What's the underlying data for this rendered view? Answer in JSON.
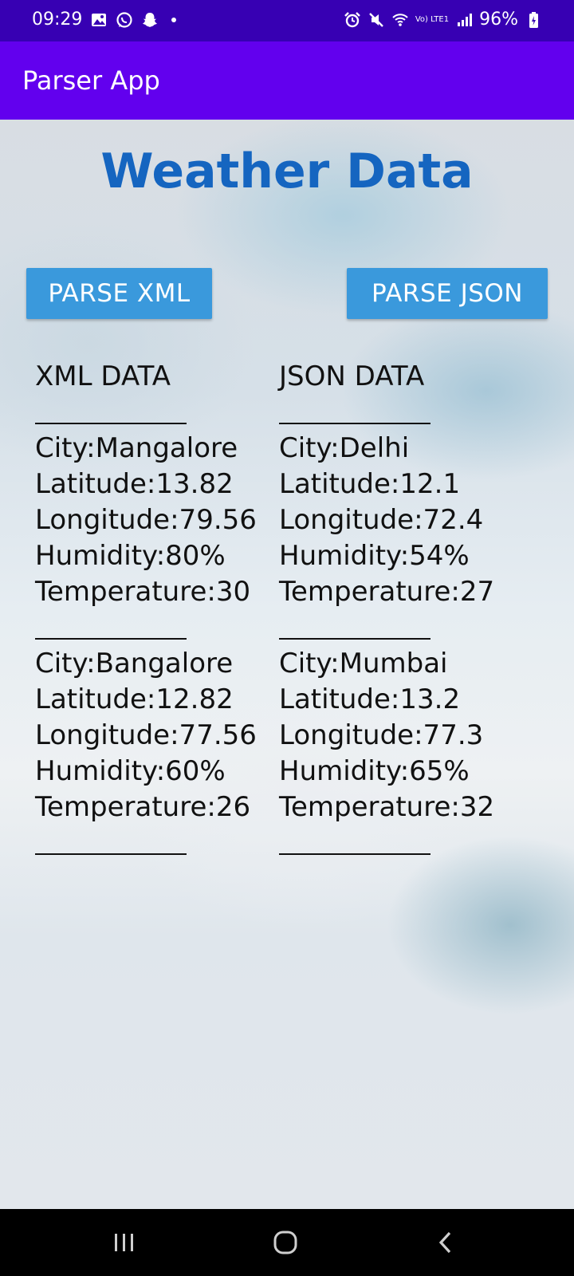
{
  "status_bar": {
    "time": "09:29",
    "network": "Vo) LTE1",
    "battery": "96%",
    "icons": [
      "gallery-icon",
      "whatsapp-icon",
      "snapchat-icon",
      "alarm-icon",
      "mute-icon",
      "wifi-icon",
      "signal-icon",
      "battery-icon"
    ]
  },
  "app_bar": {
    "title": "Parser App",
    "color": "#6200ee"
  },
  "main": {
    "title": "Weather Data",
    "title_color": "#1565c0",
    "buttons": {
      "parse_xml": "PARSE XML",
      "parse_json": "PARSE JSON"
    },
    "xml": {
      "heading": "XML DATA",
      "separator": "__________",
      "records": [
        {
          "city": "City:Mangalore",
          "latitude": "Latitude:13.82",
          "longitude": "Longitude:79.56",
          "humidity": "Humidity:80%",
          "temperature": "Temperature:30"
        },
        {
          "city": "City:Bangalore",
          "latitude": "Latitude:12.82",
          "longitude": "Longitude:77.56",
          "humidity": "Humidity:60%",
          "temperature": "Temperature:26"
        }
      ]
    },
    "json": {
      "heading": "JSON DATA",
      "separator": "__________",
      "records": [
        {
          "city": "City:Delhi",
          "latitude": "Latitude:12.1",
          "longitude": "Longitude:72.4",
          "humidity": "Humidity:54%",
          "temperature": "Temperature:27"
        },
        {
          "city": "City:Mumbai",
          "latitude": "Latitude:13.2",
          "longitude": "Longitude:77.3",
          "humidity": "Humidity:65%",
          "temperature": "Temperature:32"
        }
      ]
    }
  },
  "nav_bar": {
    "icons": [
      "recent-apps-icon",
      "home-icon",
      "back-icon"
    ]
  }
}
